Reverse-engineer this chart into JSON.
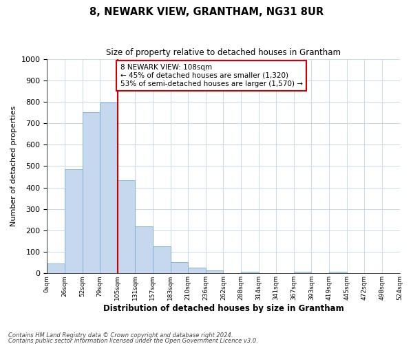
{
  "title": "8, NEWARK VIEW, GRANTHAM, NG31 8UR",
  "subtitle": "Size of property relative to detached houses in Grantham",
  "xlabel": "Distribution of detached houses by size in Grantham",
  "ylabel": "Number of detached properties",
  "bin_labels": [
    "0sqm",
    "26sqm",
    "52sqm",
    "79sqm",
    "105sqm",
    "131sqm",
    "157sqm",
    "183sqm",
    "210sqm",
    "236sqm",
    "262sqm",
    "288sqm",
    "314sqm",
    "341sqm",
    "367sqm",
    "393sqm",
    "419sqm",
    "445sqm",
    "472sqm",
    "498sqm",
    "524sqm"
  ],
  "bar_values": [
    45,
    485,
    750,
    795,
    435,
    220,
    125,
    53,
    28,
    15,
    0,
    8,
    0,
    0,
    8,
    0,
    8,
    0,
    0,
    0
  ],
  "bar_color": "#c5d8ed",
  "bar_edge_color": "#7aaed4",
  "property_line_x": 4,
  "property_line_color": "#cc0000",
  "annotation_text": "8 NEWARK VIEW: 108sqm\n← 45% of detached houses are smaller (1,320)\n53% of semi-detached houses are larger (1,570) →",
  "annotation_box_color": "#ffffff",
  "annotation_box_edge_color": "#cc0000",
  "ylim": [
    0,
    1000
  ],
  "yticks": [
    0,
    100,
    200,
    300,
    400,
    500,
    600,
    700,
    800,
    900,
    1000
  ],
  "background_color": "#ffffff",
  "grid_color": "#c8d8ec",
  "footer_line1": "Contains HM Land Registry data © Crown copyright and database right 2024.",
  "footer_line2": "Contains public sector information licensed under the Open Government Licence v3.0."
}
